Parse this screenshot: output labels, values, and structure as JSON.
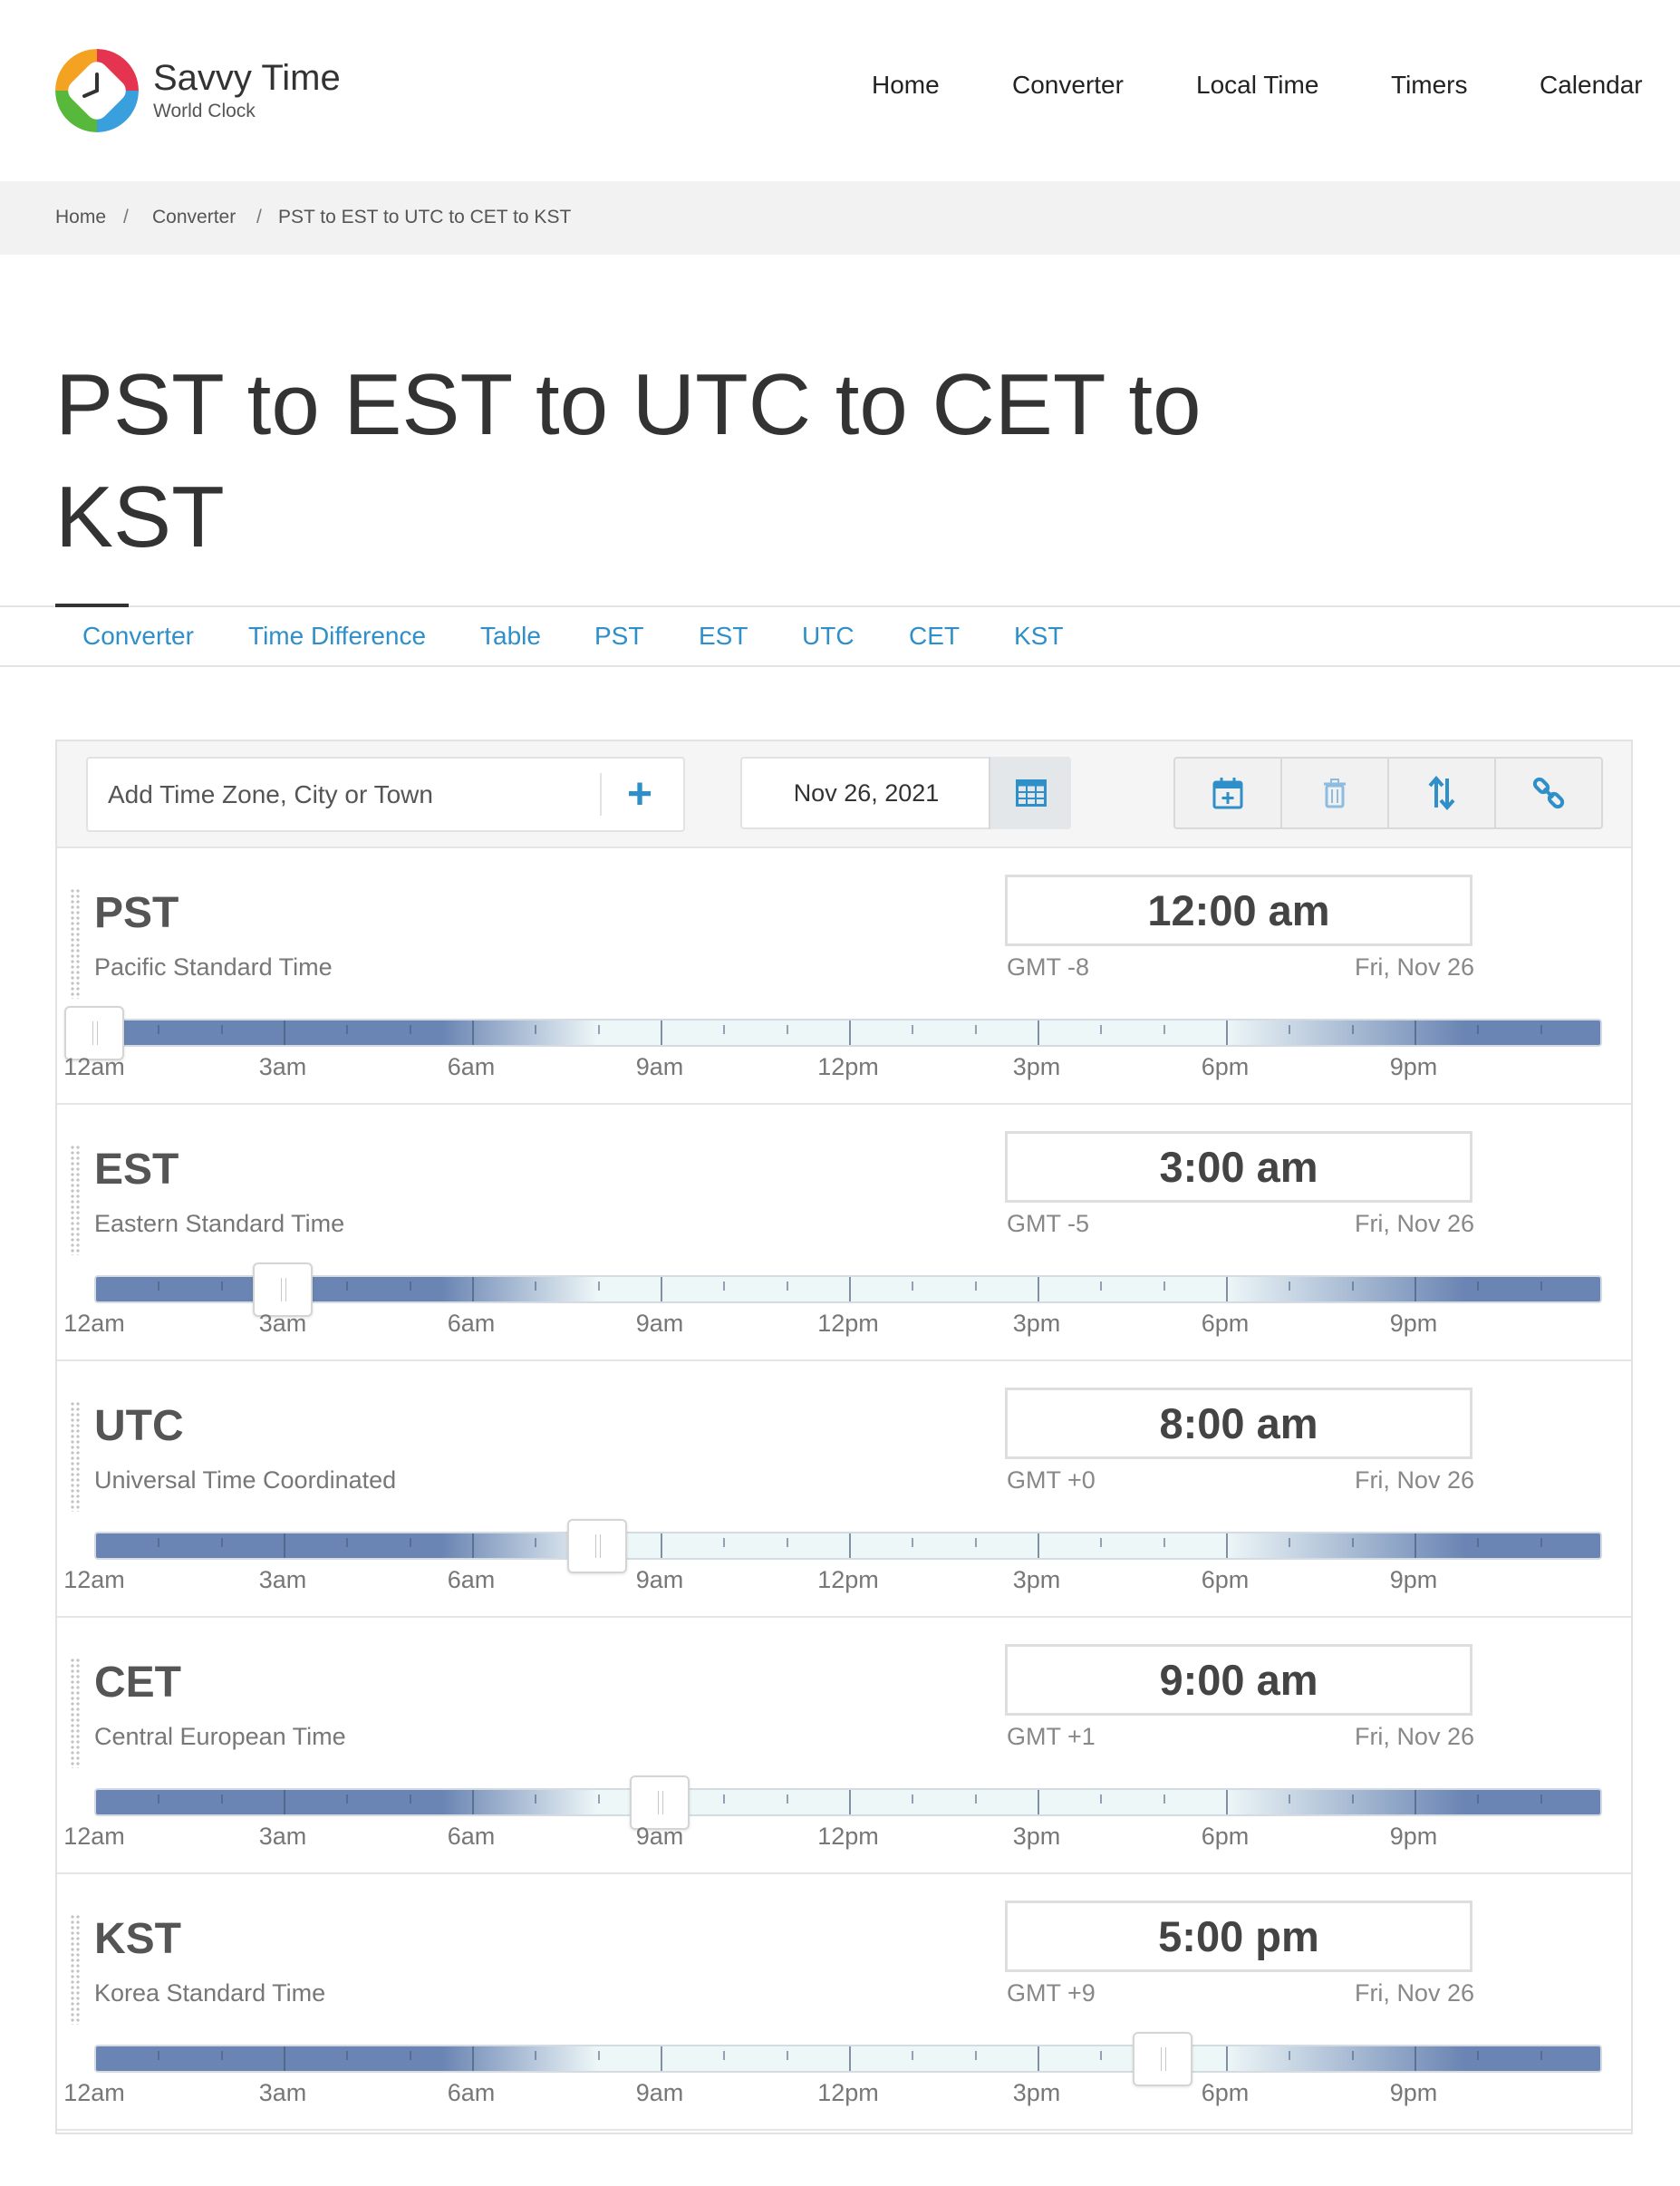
{
  "brand": {
    "title": "Savvy Time",
    "subtitle": "World Clock"
  },
  "nav": [
    "Home",
    "Converter",
    "Local Time",
    "Timers",
    "Calendar"
  ],
  "breadcrumb": [
    "Home",
    "Converter",
    "PST to EST to UTC to CET to KST"
  ],
  "page_title": "PST to EST to UTC to CET to KST",
  "tabs": [
    "Converter",
    "Time Difference",
    "Table",
    "PST",
    "EST",
    "UTC",
    "CET",
    "KST"
  ],
  "toolbar": {
    "search_placeholder": "Add Time Zone, City or Town",
    "date": "Nov 26, 2021"
  },
  "hour_labels": [
    "12am",
    "3am",
    "6am",
    "9am",
    "12pm",
    "3pm",
    "6pm",
    "9pm"
  ],
  "zones": [
    {
      "abbr": "PST",
      "name": "Pacific Standard Time",
      "time": "12:00 am",
      "gmt": "GMT -8",
      "date": "Fri, Nov 26",
      "slider_hour": 0
    },
    {
      "abbr": "EST",
      "name": "Eastern Standard Time",
      "time": "3:00 am",
      "gmt": "GMT -5",
      "date": "Fri, Nov 26",
      "slider_hour": 3
    },
    {
      "abbr": "UTC",
      "name": "Universal Time Coordinated",
      "time": "8:00 am",
      "gmt": "GMT +0",
      "date": "Fri, Nov 26",
      "slider_hour": 8
    },
    {
      "abbr": "CET",
      "name": "Central European Time",
      "time": "9:00 am",
      "gmt": "GMT +1",
      "date": "Fri, Nov 26",
      "slider_hour": 9
    },
    {
      "abbr": "KST",
      "name": "Korea Standard Time",
      "time": "5:00 pm",
      "gmt": "GMT +9",
      "date": "Fri, Nov 26",
      "slider_hour": 17
    }
  ],
  "colors": {
    "accent": "#2f8fc8",
    "night": "#6a85b3",
    "day": "#eef7f8"
  },
  "icons": [
    "plus-icon",
    "calendar-grid-icon",
    "calendar-add-icon",
    "trash-icon",
    "sort-icon",
    "link-icon"
  ]
}
